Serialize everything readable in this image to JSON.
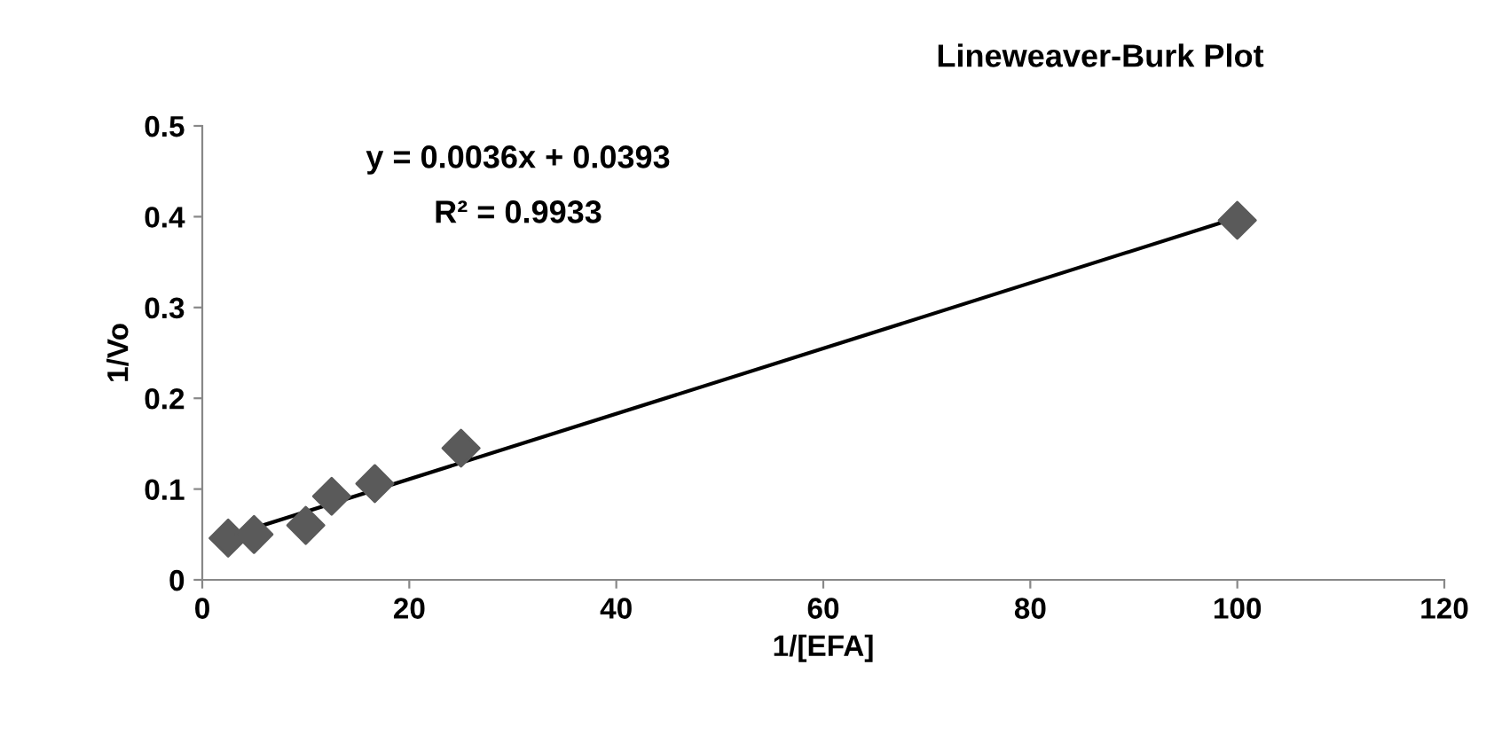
{
  "chart_data": {
    "type": "scatter",
    "title": "Lineweaver-Burk Plot",
    "xlabel": "1/[EFA]",
    "ylabel": "1/Vo",
    "series": [
      {
        "color": "#5a5a5a",
        "marker": "diamond",
        "x": [
          2.5,
          5,
          10,
          12.5,
          16.67,
          25,
          100
        ],
        "values": [
          0.046,
          0.05,
          0.06,
          0.092,
          0.106,
          0.145,
          0.396
        ]
      },
      {
        "type": "line",
        "color": "#000000",
        "marker": "none",
        "x": [
          2.5,
          100
        ],
        "values": [
          0.048,
          0.399
        ]
      }
    ],
    "annotations": [
      "y = 0.0036x + 0.0393",
      "R² = 0.9933"
    ],
    "xlim": [
      0,
      120
    ],
    "xticks": [
      0,
      20,
      40,
      60,
      80,
      100,
      120
    ],
    "ylim": [
      0,
      0.5
    ],
    "yticks": [
      0,
      0.1,
      0.2,
      0.3,
      0.4,
      0.5
    ],
    "grid": false,
    "legend": false
  }
}
